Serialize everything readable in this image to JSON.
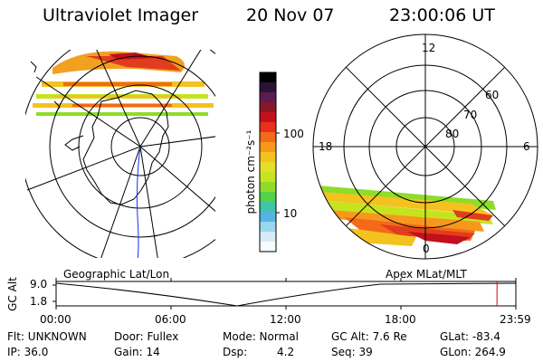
{
  "header": {
    "instrument": "Ultraviolet Imager",
    "date": "20 Nov 07",
    "time": "23:00:06 UT"
  },
  "colorbar": {
    "unit_label": "photon cm⁻²s⁻¹",
    "ticks": [
      "100",
      "10"
    ],
    "colors": [
      "#000000",
      "#2a1436",
      "#5a1e50",
      "#8a1628",
      "#c2101e",
      "#e8301a",
      "#f26a1a",
      "#f7981c",
      "#f4c21e",
      "#e6dd28",
      "#c6e41e",
      "#8fdc2a",
      "#56d24a",
      "#3ec6a6",
      "#56b4e2",
      "#9ad6ee",
      "#d4ecf6",
      "#f6fbfd"
    ]
  },
  "geo_map": {
    "label": "Geographic Lat/Lon"
  },
  "mlt_dial": {
    "label": "Apex MLat/MLT",
    "hours": {
      "top": "12",
      "left": "18",
      "right": "6",
      "bottom": "0"
    },
    "latitudes": [
      "60",
      "70",
      "80"
    ]
  },
  "altitude_plot": {
    "ylabel": "GC Alt",
    "yticks": [
      "9.0",
      "1.8"
    ],
    "xticks": [
      "00:00",
      "06:00",
      "12:00",
      "18:00",
      "23:59"
    ],
    "current_time": "23:00",
    "marker_color": "#e00000"
  },
  "footer": {
    "flt": "Flt: UNKNOWN",
    "door": "Door: Fullex",
    "mode": "Mode: Normal",
    "gc_alt": "GC Alt: 7.6 Re",
    "glat": "GLat: -83.4",
    "ip": "IP: 36.0",
    "gain": "Gain: 14",
    "dsp_label": "Dsp:",
    "dsp_value": "4.2",
    "seq": "Seq: 39",
    "glon": "GLon: 264.9"
  }
}
